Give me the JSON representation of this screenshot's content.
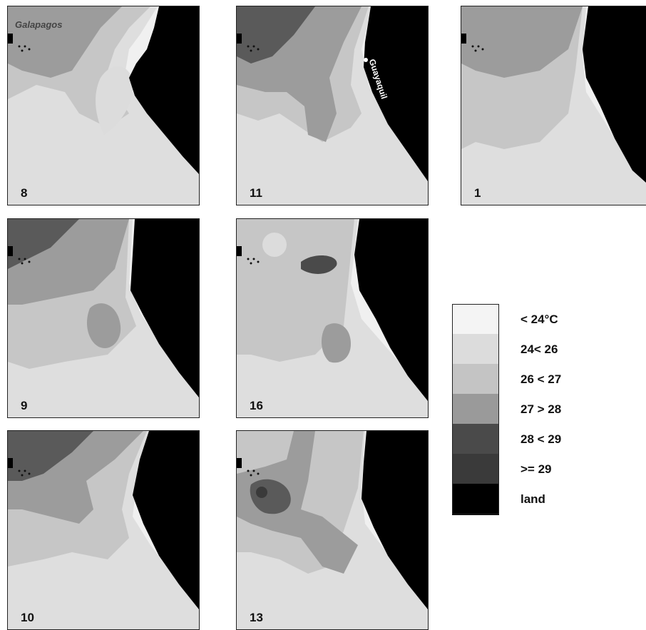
{
  "panels": [
    {
      "label": "8"
    },
    {
      "label": "11"
    },
    {
      "label": "1"
    },
    {
      "label": "9"
    },
    {
      "label": "16"
    },
    {
      "label": "10"
    },
    {
      "label": "13"
    }
  ],
  "place_labels": {
    "galapagos": "Galapagos",
    "guayaquil": "Guayaquil"
  },
  "legend": [
    {
      "label": "< 24°C",
      "color": "#f4f4f4"
    },
    {
      "label": "24< 26",
      "color": "#dcdcdc"
    },
    {
      "label": "26 < 27",
      "color": "#c4c4c4"
    },
    {
      "label": "27 > 28",
      "color": "#9a9a9a"
    },
    {
      "label": "28 < 29",
      "color": "#4a4a4a"
    },
    {
      "label": ">= 29",
      "color": "#3a3a3a"
    },
    {
      "label": "land",
      "color": "#000000"
    }
  ]
}
